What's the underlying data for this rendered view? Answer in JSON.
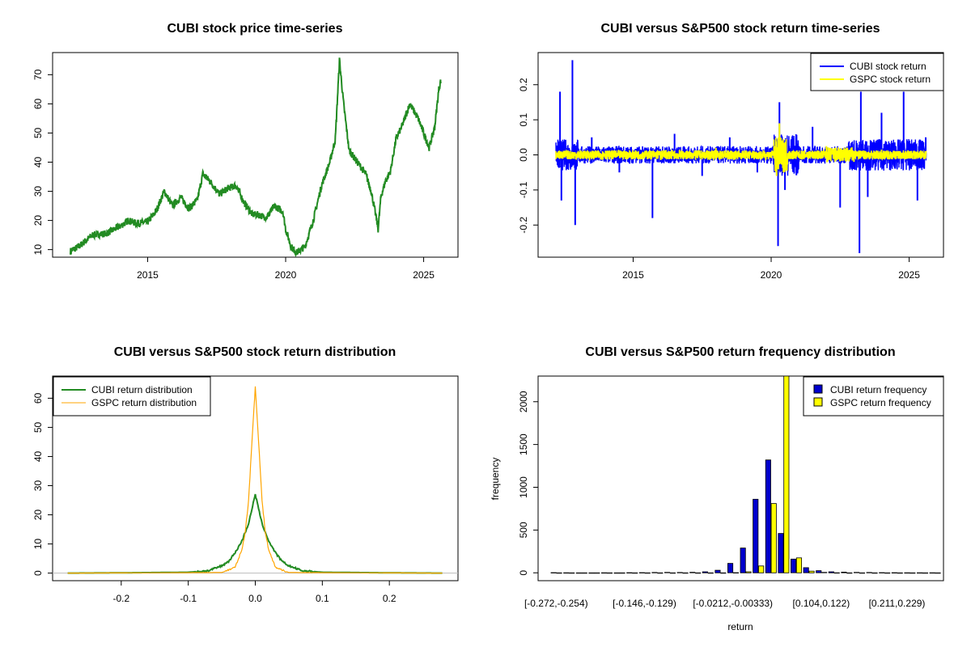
{
  "chart_data": [
    {
      "type": "line",
      "title": "CUBI stock price time-series",
      "xlabel": "",
      "ylabel": "",
      "xlim": [
        2012.1,
        2025.7
      ],
      "ylim": [
        10,
        75
      ],
      "xticks": [
        "2015",
        "2020",
        "2025"
      ],
      "yticks": [
        "10",
        "20",
        "30",
        "40",
        "50",
        "60",
        "70"
      ],
      "series": [
        {
          "color": "#228B22",
          "x": [
            2012.2,
            2012.5,
            2013.0,
            2013.5,
            2014.0,
            2014.3,
            2014.6,
            2015.0,
            2015.3,
            2015.6,
            2015.9,
            2016.2,
            2016.5,
            2016.8,
            2017.0,
            2017.3,
            2017.6,
            2017.9,
            2018.2,
            2018.5,
            2018.8,
            2019.0,
            2019.3,
            2019.6,
            2019.9,
            2020.0,
            2020.2,
            2020.4,
            2020.7,
            2021.0,
            2021.3,
            2021.6,
            2021.8,
            2021.95,
            2022.1,
            2022.3,
            2022.6,
            2022.9,
            2023.1,
            2023.2,
            2023.3,
            2023.35,
            2023.45,
            2023.6,
            2023.8,
            2024.0,
            2024.2,
            2024.5,
            2024.8,
            2025.0,
            2025.2,
            2025.4,
            2025.55,
            2025.62
          ],
          "y": [
            9.5,
            11,
            15,
            15.5,
            18,
            20,
            19,
            19.5,
            23,
            30,
            25,
            28,
            24,
            27,
            36,
            33,
            29,
            31,
            32,
            26,
            22,
            22,
            21,
            25,
            23,
            17,
            11,
            9,
            11,
            20,
            32,
            40,
            48,
            75,
            60,
            44,
            40,
            36,
            30,
            25,
            20,
            17,
            28,
            33,
            37,
            48,
            52,
            60,
            55,
            50,
            45,
            52,
            65,
            68
          ]
        }
      ]
    },
    {
      "type": "line",
      "title": "CUBI versus S&P500 stock return time-series",
      "xlabel": "",
      "ylabel": "",
      "xlim": [
        2012.1,
        2025.7
      ],
      "ylim": [
        -0.27,
        0.27
      ],
      "xticks": [
        "2015",
        "2020",
        "2025"
      ],
      "yticks": [
        "-0.2",
        "-0.1",
        "0.0",
        "0.1",
        "0.2"
      ],
      "legend": "top-right",
      "series": [
        {
          "name": "CUBI stock return",
          "color": "#0000FF",
          "x": [
            2012.2,
            2012.35,
            2012.4,
            2012.8,
            2012.9,
            2013.5,
            2014.5,
            2015.7,
            2016.5,
            2017.5,
            2018.5,
            2019.5,
            2020.25,
            2020.3,
            2020.5,
            2021.5,
            2022.5,
            2023.2,
            2023.25,
            2023.5,
            2024.0,
            2024.8,
            2025.3,
            2025.6
          ],
          "y": [
            0.0,
            0.18,
            -0.13,
            0.27,
            -0.2,
            0.05,
            -0.05,
            -0.18,
            0.06,
            -0.06,
            0.05,
            -0.05,
            -0.26,
            0.15,
            -0.1,
            0.08,
            -0.15,
            -0.28,
            0.18,
            -0.12,
            0.12,
            0.18,
            -0.13,
            0.05
          ]
        },
        {
          "name": "GSPC stock return",
          "color": "#FFFF00",
          "x": [
            2012.2,
            2014.0,
            2016.0,
            2018.0,
            2020.2,
            2020.3,
            2020.5,
            2022.0,
            2023.0,
            2024.0,
            2025.6
          ],
          "y": [
            0.0,
            0.012,
            -0.015,
            0.02,
            -0.06,
            0.09,
            -0.03,
            0.025,
            -0.02,
            0.015,
            0.01
          ]
        }
      ]
    },
    {
      "type": "line",
      "title": "CUBI versus S&P500 stock return distribution",
      "xlabel": "",
      "ylabel": "",
      "xlim": [
        -0.28,
        0.28
      ],
      "ylim": [
        0,
        65
      ],
      "xticks": [
        "-0.2",
        "-0.1",
        "0.0",
        "0.1",
        "0.2"
      ],
      "yticks": [
        "0",
        "10",
        "20",
        "30",
        "40",
        "50",
        "60"
      ],
      "legend": "top-left",
      "series": [
        {
          "name": "CUBI return distribution",
          "color": "#228B22",
          "x": [
            -0.28,
            -0.2,
            -0.1,
            -0.07,
            -0.05,
            -0.04,
            -0.03,
            -0.02,
            -0.01,
            -0.005,
            0.0,
            0.005,
            0.01,
            0.02,
            0.03,
            0.04,
            0.05,
            0.07,
            0.1,
            0.2,
            0.28
          ],
          "y": [
            0,
            0.1,
            0.3,
            0.8,
            2.5,
            4,
            7,
            11,
            17,
            22,
            27,
            22,
            17,
            11,
            7,
            4,
            2.5,
            0.8,
            0.3,
            0.1,
            0
          ]
        },
        {
          "name": "GSPC return distribution",
          "color": "#FFA500",
          "x": [
            -0.28,
            -0.05,
            -0.03,
            -0.02,
            -0.015,
            -0.01,
            -0.005,
            0.0,
            0.005,
            0.01,
            0.015,
            0.02,
            0.03,
            0.05,
            0.28
          ],
          "y": [
            0,
            0.2,
            2,
            8,
            14,
            25,
            45,
            64,
            45,
            25,
            14,
            8,
            2,
            0.2,
            0
          ]
        }
      ]
    },
    {
      "type": "bar",
      "title": "CUBI versus S&P500 return frequency distribution",
      "xlabel": "return",
      "ylabel": "frequency",
      "ylim": [
        0,
        2300
      ],
      "yticks": [
        "0",
        "500",
        "1000",
        "1500",
        "2000"
      ],
      "xtick_labels": [
        "[-0.272,-0.254)",
        "[-0.146,-0.129)",
        "[-0.0212,-0.00333)",
        "[0.104,0.122)",
        "[0.211,0.229)"
      ],
      "legend": "top-right",
      "series": [
        {
          "name": "CUBI return frequency",
          "color": "#0000CD",
          "values": [
            3,
            1,
            0,
            0,
            1,
            0,
            2,
            3,
            4,
            5,
            4,
            6,
            12,
            30,
            110,
            290,
            860,
            1320,
            460,
            160,
            60,
            25,
            12,
            8,
            5,
            4,
            3,
            2,
            1,
            1,
            1
          ]
        },
        {
          "name": "GSPC return frequency",
          "color": "#FFFF00",
          "values": [
            0,
            0,
            0,
            0,
            0,
            0,
            0,
            0,
            0,
            0,
            0,
            0,
            0,
            0,
            2,
            12,
            80,
            810,
            2300,
            175,
            20,
            5,
            1,
            0,
            0,
            0,
            0,
            0,
            0,
            0,
            0
          ]
        }
      ]
    }
  ]
}
